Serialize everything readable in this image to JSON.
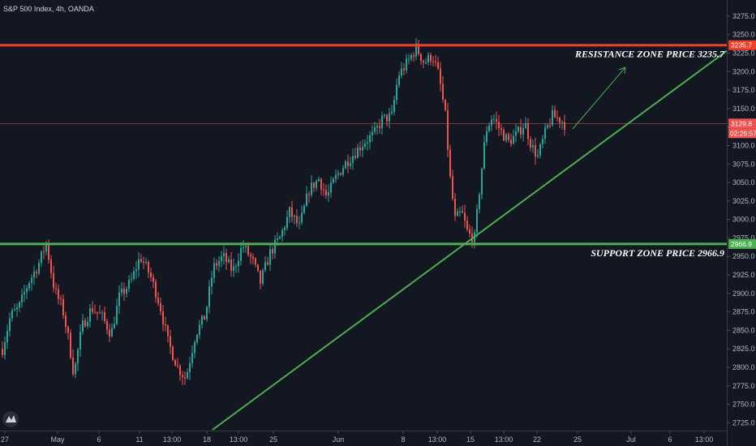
{
  "chart_data": {
    "type": "candlestick",
    "symbol": "S&P 500 Index, 4h, OANDA",
    "y_range": [
      2720,
      3288
    ],
    "y_ticks": [
      2725,
      2750,
      2775,
      2800,
      2825,
      2850,
      2875,
      2900,
      2925,
      2950,
      2975,
      3000,
      3025,
      3050,
      3075,
      3100,
      3125,
      3150,
      3175,
      3200,
      3225,
      3250,
      3275
    ],
    "x_ticks": [
      "27",
      "May",
      "6",
      "11",
      "13:00",
      "18",
      "13:00",
      "25",
      "Jun",
      "8",
      "13:00",
      "15",
      "13:00",
      "22",
      "25",
      "Jul",
      "6",
      "13:00"
    ],
    "resistance": {
      "price": 3235.7,
      "price_label": "3235.7",
      "label": "RESISTANCE ZONE PRICE 3235.7",
      "color": "#f0412c"
    },
    "support": {
      "price": 2966.9,
      "price_label": "2966.9",
      "label": "SUPPORT ZONE PRICE 2966.9",
      "color": "#4caf50"
    },
    "current": {
      "price": 3129.8,
      "price_label": "3129.8",
      "countdown": "02:26:57"
    },
    "trendline": {
      "from_price": 2720,
      "to_price": 3228,
      "color": "#4caf50"
    },
    "bull_color": "#26a69a",
    "bear_color": "#ef5350",
    "grid": false,
    "anchors": [
      [
        2,
        2825
      ],
      [
        12,
        2870
      ],
      [
        22,
        2880
      ],
      [
        34,
        2915
      ],
      [
        46,
        2938
      ],
      [
        56,
        2968
      ],
      [
        66,
        2905
      ],
      [
        76,
        2880
      ],
      [
        84,
        2835
      ],
      [
        90,
        2790
      ],
      [
        100,
        2855
      ],
      [
        112,
        2880
      ],
      [
        124,
        2870
      ],
      [
        136,
        2845
      ],
      [
        146,
        2895
      ],
      [
        160,
        2915
      ],
      [
        172,
        2950
      ],
      [
        184,
        2925
      ],
      [
        196,
        2885
      ],
      [
        206,
        2835
      ],
      [
        218,
        2800
      ],
      [
        228,
        2785
      ],
      [
        240,
        2845
      ],
      [
        252,
        2870
      ],
      [
        262,
        2935
      ],
      [
        274,
        2950
      ],
      [
        286,
        2930
      ],
      [
        298,
        2965
      ],
      [
        310,
        2945
      ],
      [
        320,
        2915
      ],
      [
        332,
        2955
      ],
      [
        344,
        2975
      ],
      [
        356,
        3010
      ],
      [
        368,
        2990
      ],
      [
        380,
        3040
      ],
      [
        392,
        3055
      ],
      [
        402,
        3030
      ],
      [
        412,
        3055
      ],
      [
        424,
        3075
      ],
      [
        436,
        3090
      ],
      [
        448,
        3105
      ],
      [
        460,
        3115
      ],
      [
        470,
        3135
      ],
      [
        482,
        3140
      ],
      [
        490,
        3195
      ],
      [
        500,
        3210
      ],
      [
        512,
        3232
      ],
      [
        522,
        3212
      ],
      [
        532,
        3222
      ],
      [
        540,
        3195
      ],
      [
        548,
        3140
      ],
      [
        554,
        3055
      ],
      [
        560,
        3000
      ],
      [
        568,
        3010
      ],
      [
        576,
        2980
      ],
      [
        584,
        2975
      ],
      [
        592,
        3060
      ],
      [
        598,
        3120
      ],
      [
        606,
        3140
      ],
      [
        616,
        3120
      ],
      [
        626,
        3105
      ],
      [
        636,
        3115
      ],
      [
        646,
        3130
      ],
      [
        654,
        3100
      ],
      [
        662,
        3085
      ],
      [
        672,
        3120
      ],
      [
        680,
        3140
      ],
      [
        690,
        3135
      ],
      [
        696,
        3128
      ]
    ]
  }
}
